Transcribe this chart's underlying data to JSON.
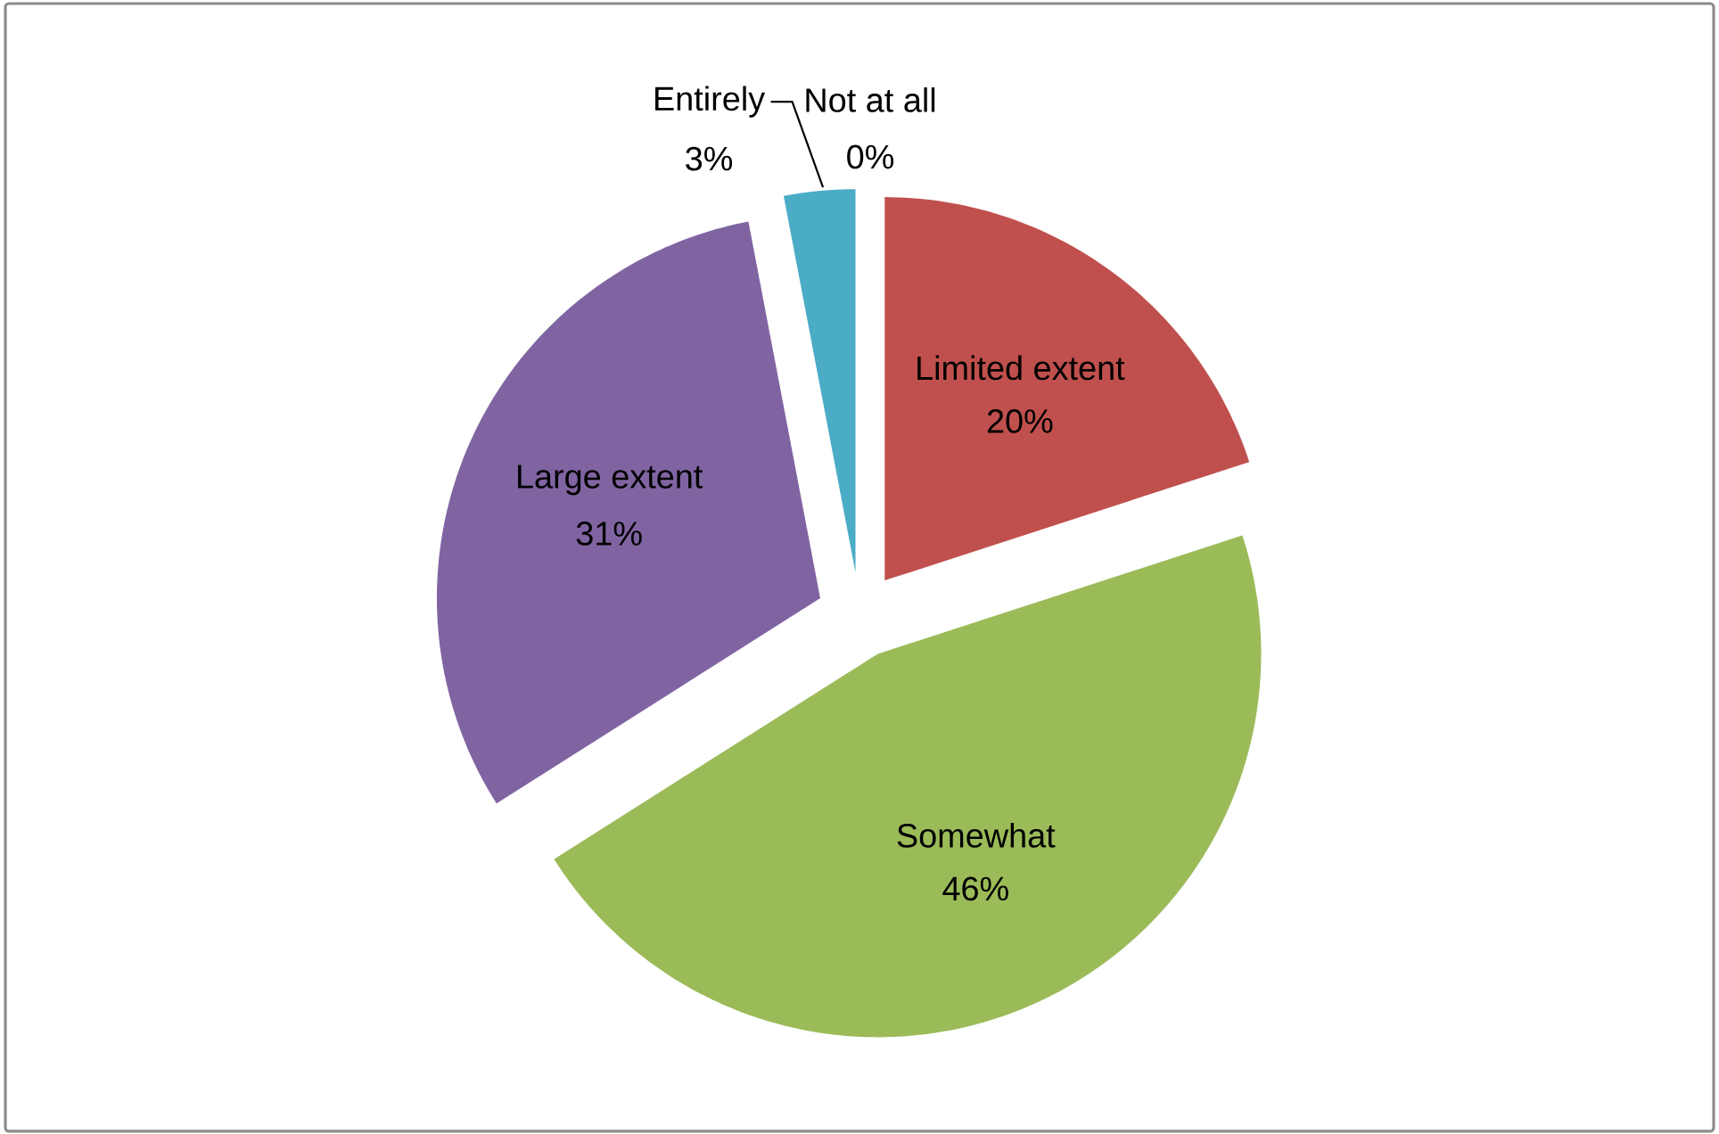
{
  "chart_data": {
    "type": "pie",
    "categories": [
      "Not at all",
      "Limited extent",
      "Somewhat",
      "Large extent",
      "Entirely"
    ],
    "values": [
      0,
      20,
      46,
      31,
      3
    ],
    "value_labels": [
      "0%",
      "20%",
      "46%",
      "31%",
      "3%"
    ],
    "colors": [
      null,
      "#c0504d",
      "#9bbb59",
      "#8064a2",
      "#4bacc6"
    ]
  }
}
